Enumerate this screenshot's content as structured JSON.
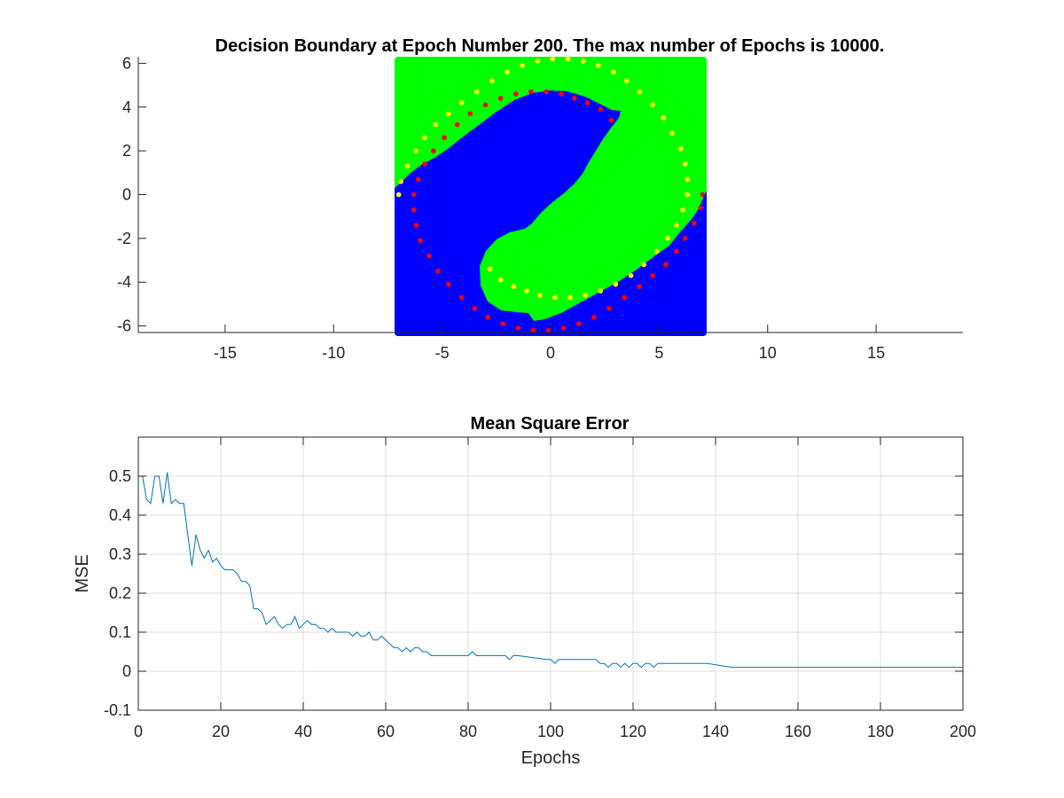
{
  "chart_data": [
    {
      "type": "scatter",
      "title": "Decision Boundary at Epoch Number 200. The max number of Epochs is 10000.",
      "xlabel": "",
      "ylabel": "",
      "xlim": [
        -19,
        19
      ],
      "ylim": [
        -6.3,
        6.3
      ],
      "xticks": [
        -15,
        -10,
        -5,
        0,
        5,
        10,
        15
      ],
      "yticks": [
        -6,
        -4,
        -2,
        0,
        2,
        4,
        6
      ],
      "grid": false,
      "region": {
        "x": [
          -7.2,
          7.2
        ],
        "y": [
          -6.3,
          6.3
        ]
      },
      "region_colors": {
        "class_1": "#00ff00",
        "class_2": "#0000ff"
      },
      "inner_spiral_center": [
        -1.5,
        -1.5
      ],
      "series": [
        {
          "color": "#ffff00",
          "x": [
            -7.0,
            -6.9,
            -6.6,
            -6.2,
            -5.8,
            -5.3,
            -4.7,
            -4.1,
            -3.4,
            -2.7,
            -2.0,
            -1.3,
            -0.6,
            0.1,
            0.8,
            1.5,
            2.2,
            2.9,
            3.5,
            4.1,
            4.7,
            5.2,
            5.6,
            6.0,
            6.2,
            6.3,
            6.3,
            6.1,
            5.8,
            5.4,
            4.9,
            4.3,
            3.7,
            3.0,
            2.3,
            1.6,
            0.9,
            0.2,
            -0.5,
            -1.1,
            -1.7,
            -2.3,
            -2.8
          ],
          "y": [
            0.0,
            0.6,
            1.3,
            2.0,
            2.6,
            3.2,
            3.7,
            4.2,
            4.7,
            5.2,
            5.6,
            5.9,
            6.1,
            6.2,
            6.2,
            6.1,
            5.9,
            5.6,
            5.2,
            4.7,
            4.1,
            3.5,
            2.8,
            2.1,
            1.4,
            0.7,
            0.0,
            -0.7,
            -1.4,
            -2.0,
            -2.6,
            -3.2,
            -3.7,
            -4.1,
            -4.4,
            -4.6,
            -4.7,
            -4.7,
            -4.6,
            -4.4,
            -4.2,
            -3.9,
            -3.4
          ]
        },
        {
          "color": "#ff0000",
          "x": [
            7.0,
            6.9,
            6.6,
            6.2,
            5.8,
            5.3,
            4.7,
            4.1,
            3.4,
            2.7,
            2.0,
            1.3,
            0.6,
            -0.1,
            -0.8,
            -1.5,
            -2.2,
            -2.9,
            -3.5,
            -4.1,
            -4.7,
            -5.2,
            -5.6,
            -6.0,
            -6.2,
            -6.3,
            -6.3,
            -6.1,
            -5.8,
            -5.4,
            -4.9,
            -4.3,
            -3.7,
            -3.0,
            -2.3,
            -1.6,
            -0.9,
            -0.2,
            0.5,
            1.1,
            1.7,
            2.3,
            2.8
          ],
          "y": [
            0.0,
            -0.6,
            -1.3,
            -2.0,
            -2.6,
            -3.2,
            -3.7,
            -4.2,
            -4.7,
            -5.2,
            -5.6,
            -5.9,
            -6.1,
            -6.2,
            -6.2,
            -6.1,
            -5.9,
            -5.6,
            -5.2,
            -4.7,
            -4.1,
            -3.5,
            -2.8,
            -2.1,
            -1.4,
            -0.7,
            0.0,
            0.7,
            1.4,
            2.0,
            2.6,
            3.2,
            3.7,
            4.1,
            4.4,
            4.6,
            4.7,
            4.7,
            4.6,
            4.4,
            4.2,
            3.9,
            3.4
          ]
        }
      ]
    },
    {
      "type": "line",
      "title": "Mean Square Error",
      "xlabel": "Epochs",
      "ylabel": "MSE",
      "xlim": [
        0,
        200
      ],
      "ylim": [
        -0.1,
        0.6
      ],
      "xticks": [
        0,
        20,
        40,
        60,
        80,
        100,
        120,
        140,
        160,
        180,
        200
      ],
      "yticks": [
        -0.1,
        0,
        0.1,
        0.2,
        0.3,
        0.4,
        0.5
      ],
      "grid": true,
      "line_color": "#0072bd",
      "x": [
        1,
        2,
        3,
        4,
        5,
        6,
        7,
        8,
        9,
        10,
        11,
        12,
        13,
        14,
        15,
        16,
        17,
        18,
        19,
        20,
        21,
        22,
        23,
        24,
        25,
        26,
        27,
        28,
        29,
        30,
        31,
        32,
        33,
        34,
        35,
        36,
        37,
        38,
        39,
        40,
        41,
        42,
        43,
        44,
        45,
        46,
        47,
        48,
        49,
        50,
        51,
        52,
        53,
        54,
        55,
        56,
        57,
        58,
        59,
        60,
        61,
        62,
        63,
        64,
        65,
        66,
        67,
        68,
        69,
        70,
        71,
        72,
        80,
        81,
        82,
        89,
        90,
        91,
        92,
        99,
        100,
        101,
        102,
        111,
        112,
        113,
        114,
        115,
        116,
        117,
        118,
        119,
        120,
        121,
        122,
        123,
        124,
        125,
        126,
        136,
        137,
        138,
        144,
        145,
        200
      ],
      "y": [
        0.5,
        0.44,
        0.43,
        0.5,
        0.5,
        0.43,
        0.51,
        0.43,
        0.44,
        0.43,
        0.43,
        0.35,
        0.27,
        0.35,
        0.31,
        0.29,
        0.31,
        0.28,
        0.29,
        0.27,
        0.26,
        0.26,
        0.26,
        0.25,
        0.23,
        0.23,
        0.22,
        0.16,
        0.16,
        0.15,
        0.12,
        0.13,
        0.14,
        0.12,
        0.11,
        0.12,
        0.12,
        0.14,
        0.11,
        0.12,
        0.13,
        0.12,
        0.12,
        0.11,
        0.11,
        0.1,
        0.11,
        0.1,
        0.1,
        0.1,
        0.1,
        0.09,
        0.1,
        0.09,
        0.09,
        0.1,
        0.08,
        0.08,
        0.09,
        0.08,
        0.07,
        0.06,
        0.06,
        0.05,
        0.06,
        0.05,
        0.06,
        0.06,
        0.05,
        0.05,
        0.04,
        0.04,
        0.04,
        0.05,
        0.04,
        0.04,
        0.03,
        0.04,
        0.04,
        0.03,
        0.03,
        0.02,
        0.03,
        0.03,
        0.02,
        0.02,
        0.01,
        0.02,
        0.02,
        0.01,
        0.02,
        0.01,
        0.02,
        0.02,
        0.01,
        0.02,
        0.02,
        0.01,
        0.02,
        0.02,
        0.02,
        0.02,
        0.01,
        0.01,
        0.01
      ]
    }
  ]
}
